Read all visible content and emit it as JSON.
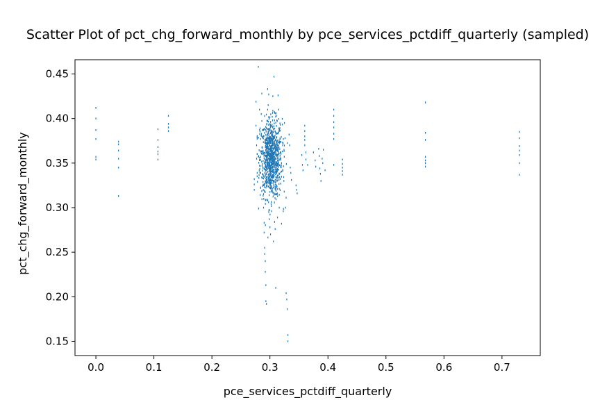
{
  "chart_data": {
    "type": "scatter",
    "title": "Scatter Plot of pct_chg_forward_monthly by pce_services_pctdiff_quarterly (sampled)",
    "xlabel": "pce_services_pctdiff_quarterly",
    "ylabel": "pct_chg_forward_monthly",
    "xlim": [
      -0.036,
      0.766
    ],
    "ylim": [
      0.134,
      0.466
    ],
    "xticks": [
      0.0,
      0.1,
      0.2,
      0.3,
      0.4,
      0.5,
      0.6,
      0.7
    ],
    "xtick_labels": [
      "0.0",
      "0.1",
      "0.2",
      "0.3",
      "0.4",
      "0.5",
      "0.6",
      "0.7"
    ],
    "yticks": [
      0.15,
      0.2,
      0.25,
      0.3,
      0.35,
      0.4,
      0.45
    ],
    "ytick_labels": [
      "0.15",
      "0.20",
      "0.25",
      "0.30",
      "0.35",
      "0.40",
      "0.45"
    ],
    "grid": false,
    "color": "#1f77b4",
    "points": [
      [
        0.0,
        0.412
      ],
      [
        0.0,
        0.4
      ],
      [
        0.0,
        0.387
      ],
      [
        0.0,
        0.377
      ],
      [
        0.0,
        0.357
      ],
      [
        0.0,
        0.354
      ],
      [
        0.039,
        0.374
      ],
      [
        0.039,
        0.371
      ],
      [
        0.039,
        0.364
      ],
      [
        0.039,
        0.355
      ],
      [
        0.039,
        0.345
      ],
      [
        0.039,
        0.313
      ],
      [
        0.107,
        0.388
      ],
      [
        0.107,
        0.376
      ],
      [
        0.107,
        0.368
      ],
      [
        0.107,
        0.363
      ],
      [
        0.107,
        0.36
      ],
      [
        0.107,
        0.354
      ],
      [
        0.125,
        0.403
      ],
      [
        0.125,
        0.394
      ],
      [
        0.125,
        0.39
      ],
      [
        0.125,
        0.386
      ],
      [
        0.273,
        0.332
      ],
      [
        0.273,
        0.326
      ],
      [
        0.273,
        0.32
      ],
      [
        0.276,
        0.419
      ],
      [
        0.276,
        0.392
      ],
      [
        0.277,
        0.37
      ],
      [
        0.277,
        0.355
      ],
      [
        0.278,
        0.339
      ],
      [
        0.28,
        0.458
      ],
      [
        0.282,
        0.41
      ],
      [
        0.283,
        0.389
      ],
      [
        0.284,
        0.377
      ],
      [
        0.285,
        0.405
      ],
      [
        0.286,
        0.428
      ],
      [
        0.287,
        0.362
      ],
      [
        0.288,
        0.345
      ],
      [
        0.289,
        0.325
      ],
      [
        0.289,
        0.3
      ],
      [
        0.29,
        0.283
      ],
      [
        0.29,
        0.272
      ],
      [
        0.291,
        0.255
      ],
      [
        0.291,
        0.248
      ],
      [
        0.292,
        0.24
      ],
      [
        0.292,
        0.228
      ],
      [
        0.293,
        0.213
      ],
      [
        0.293,
        0.195
      ],
      [
        0.294,
        0.192
      ],
      [
        0.295,
        0.309
      ],
      [
        0.296,
        0.433
      ],
      [
        0.297,
        0.415
      ],
      [
        0.298,
        0.295
      ],
      [
        0.299,
        0.287
      ],
      [
        0.3,
        0.278
      ],
      [
        0.301,
        0.27
      ],
      [
        0.302,
        0.304
      ],
      [
        0.303,
        0.296
      ],
      [
        0.304,
        0.402
      ],
      [
        0.305,
        0.425
      ],
      [
        0.306,
        0.262
      ],
      [
        0.307,
        0.447
      ],
      [
        0.308,
        0.284
      ],
      [
        0.309,
        0.276
      ],
      [
        0.31,
        0.21
      ],
      [
        0.312,
        0.398
      ],
      [
        0.313,
        0.289
      ],
      [
        0.314,
        0.426
      ],
      [
        0.315,
        0.41
      ],
      [
        0.316,
        0.3
      ],
      [
        0.318,
        0.393
      ],
      [
        0.32,
        0.282
      ],
      [
        0.322,
        0.37
      ],
      [
        0.323,
        0.296
      ],
      [
        0.324,
        0.33
      ],
      [
        0.325,
        0.395
      ],
      [
        0.326,
        0.378
      ],
      [
        0.327,
        0.3
      ],
      [
        0.328,
        0.204
      ],
      [
        0.329,
        0.197
      ],
      [
        0.33,
        0.186
      ],
      [
        0.331,
        0.157
      ],
      [
        0.331,
        0.15
      ],
      [
        0.333,
        0.382
      ],
      [
        0.334,
        0.37
      ],
      [
        0.335,
        0.345
      ],
      [
        0.336,
        0.339
      ],
      [
        0.337,
        0.331
      ],
      [
        0.345,
        0.325
      ],
      [
        0.346,
        0.32
      ],
      [
        0.347,
        0.316
      ],
      [
        0.355,
        0.359
      ],
      [
        0.356,
        0.348
      ],
      [
        0.357,
        0.342
      ],
      [
        0.36,
        0.392
      ],
      [
        0.36,
        0.386
      ],
      [
        0.36,
        0.38
      ],
      [
        0.36,
        0.376
      ],
      [
        0.36,
        0.37
      ],
      [
        0.362,
        0.362
      ],
      [
        0.362,
        0.354
      ],
      [
        0.365,
        0.348
      ],
      [
        0.375,
        0.362
      ],
      [
        0.378,
        0.353
      ],
      [
        0.379,
        0.346
      ],
      [
        0.384,
        0.366
      ],
      [
        0.385,
        0.358
      ],
      [
        0.386,
        0.344
      ],
      [
        0.387,
        0.338
      ],
      [
        0.388,
        0.33
      ],
      [
        0.39,
        0.355
      ],
      [
        0.391,
        0.35
      ],
      [
        0.392,
        0.365
      ],
      [
        0.395,
        0.342
      ],
      [
        0.41,
        0.41
      ],
      [
        0.41,
        0.403
      ],
      [
        0.41,
        0.396
      ],
      [
        0.41,
        0.39
      ],
      [
        0.41,
        0.383
      ],
      [
        0.41,
        0.377
      ],
      [
        0.41,
        0.348
      ],
      [
        0.425,
        0.354
      ],
      [
        0.425,
        0.349
      ],
      [
        0.425,
        0.345
      ],
      [
        0.425,
        0.341
      ],
      [
        0.425,
        0.337
      ],
      [
        0.568,
        0.418
      ],
      [
        0.568,
        0.384
      ],
      [
        0.568,
        0.376
      ],
      [
        0.568,
        0.357
      ],
      [
        0.568,
        0.353
      ],
      [
        0.568,
        0.35
      ],
      [
        0.568,
        0.346
      ],
      [
        0.73,
        0.385
      ],
      [
        0.73,
        0.378
      ],
      [
        0.73,
        0.369
      ],
      [
        0.73,
        0.364
      ],
      [
        0.73,
        0.359
      ],
      [
        0.73,
        0.35
      ],
      [
        0.73,
        0.337
      ]
    ],
    "cluster": {
      "description_free": true,
      "x_range": [
        0.278,
        0.33
      ],
      "x_center": 0.302,
      "y_center": 0.355,
      "y_spread": 0.022,
      "count": 900
    }
  }
}
